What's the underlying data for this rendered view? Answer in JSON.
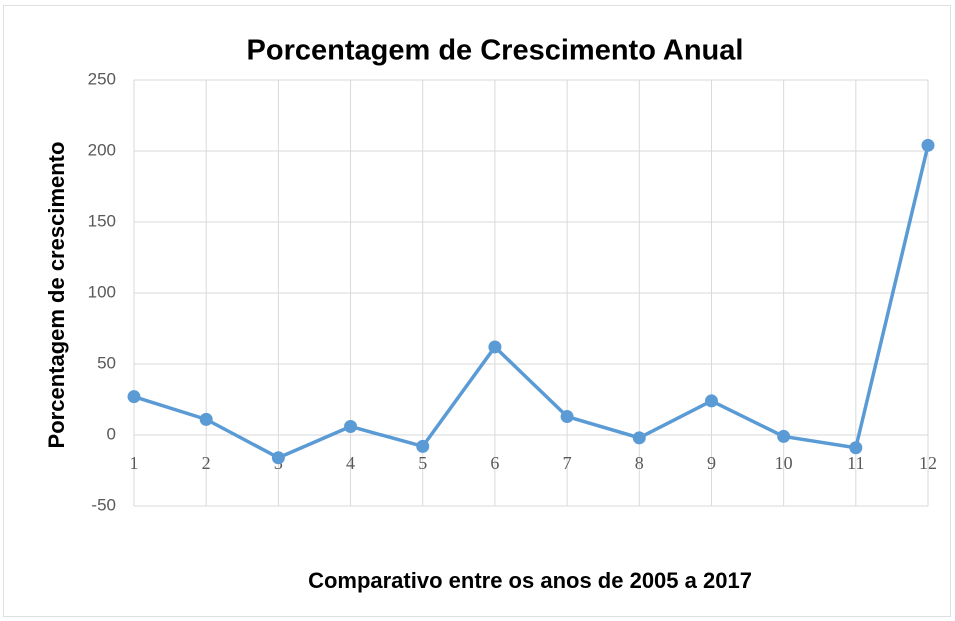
{
  "chart_data": {
    "type": "line",
    "title": "Porcentagem de Crescimento Anual",
    "x_label": "Comparativo entre os anos de 2005 a 2017",
    "y_label": "Porcentagem de crescimento",
    "x": [
      1,
      2,
      3,
      4,
      5,
      6,
      7,
      8,
      9,
      10,
      11,
      12
    ],
    "xlim": [
      1,
      12
    ],
    "xticks": [
      1,
      2,
      3,
      4,
      5,
      6,
      7,
      8,
      9,
      10,
      11,
      12
    ],
    "series": [
      {
        "name": "Porcentagem de crescimento",
        "color": "#5b9bd5",
        "values": [
          27,
          11,
          -16,
          6,
          -8,
          62,
          13,
          -2,
          24,
          -1,
          -9,
          204
        ]
      }
    ],
    "ylim": [
      -50,
      250
    ],
    "yticks": [
      -50,
      0,
      50,
      100,
      150,
      200,
      250
    ],
    "grid": true
  }
}
